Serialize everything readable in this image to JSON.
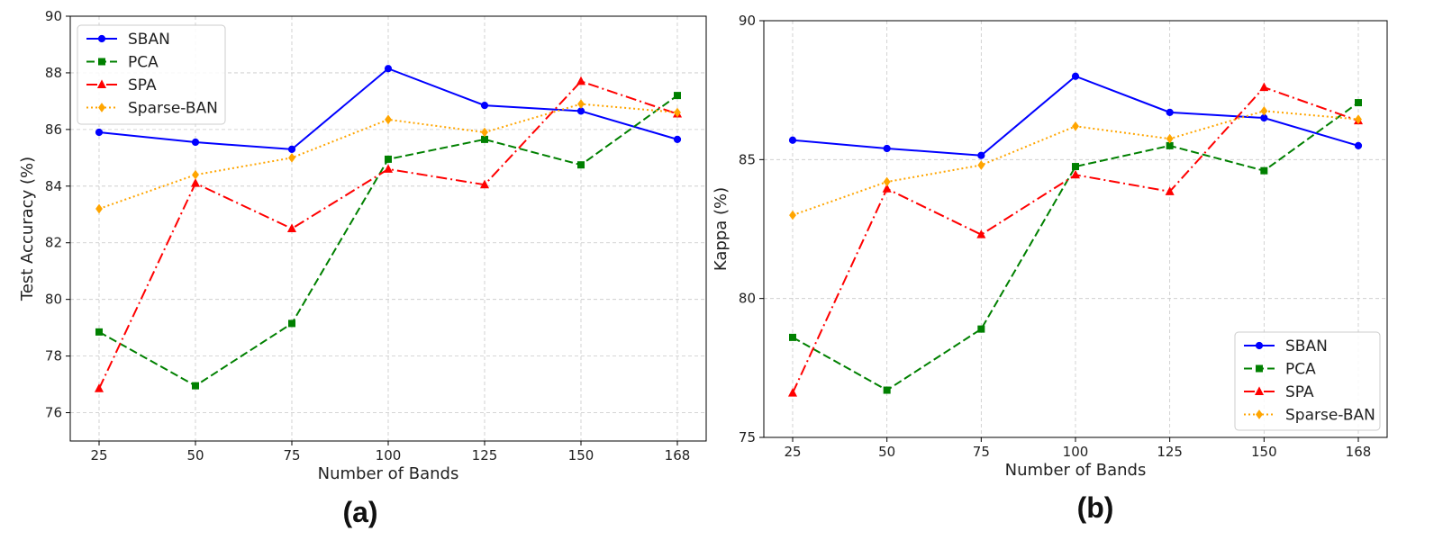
{
  "chart_data": [
    {
      "type": "line",
      "panel_label": "(a)",
      "xlabel": "Number of Bands",
      "ylabel": "Test Accuracy (%)",
      "x": [
        25,
        50,
        75,
        100,
        125,
        150,
        168
      ],
      "x_tick_labels": [
        "25",
        "50",
        "75",
        "100",
        "125",
        "150",
        "168"
      ],
      "ylim": [
        75,
        90
      ],
      "y_ticks": [
        76,
        78,
        80,
        82,
        84,
        86,
        88,
        90
      ],
      "y_tick_labels": [
        "76",
        "78",
        "80",
        "82",
        "84",
        "86",
        "88",
        "90"
      ],
      "grid": true,
      "legend_position": "top-left",
      "series": [
        {
          "name": "SBAN",
          "color": "#0000ff",
          "style": "solid",
          "marker": "circle",
          "values": [
            85.9,
            85.55,
            85.3,
            88.15,
            86.85,
            86.65,
            85.65
          ]
        },
        {
          "name": "PCA",
          "color": "#008000",
          "style": "dashed",
          "marker": "square",
          "values": [
            78.85,
            76.95,
            79.15,
            84.95,
            85.65,
            84.75,
            87.2
          ]
        },
        {
          "name": "SPA",
          "color": "#ff0000",
          "style": "dashdot",
          "marker": "triangle",
          "values": [
            76.85,
            84.1,
            82.5,
            84.6,
            84.05,
            87.7,
            86.55
          ]
        },
        {
          "name": "Sparse-BAN",
          "color": "#ffa500",
          "style": "dotted",
          "marker": "diamond",
          "values": [
            83.2,
            84.4,
            85.0,
            86.35,
            85.9,
            86.9,
            86.6
          ]
        }
      ]
    },
    {
      "type": "line",
      "panel_label": "(b)",
      "xlabel": "Number of Bands",
      "ylabel": "Kappa (%)",
      "x": [
        25,
        50,
        75,
        100,
        125,
        150,
        168
      ],
      "x_tick_labels": [
        "25",
        "50",
        "75",
        "100",
        "125",
        "150",
        "168"
      ],
      "ylim": [
        75,
        90
      ],
      "y_ticks": [
        75,
        80,
        85,
        90
      ],
      "y_tick_labels": [
        "75",
        "80",
        "85",
        "90"
      ],
      "grid": true,
      "legend_position": "bottom-right",
      "series": [
        {
          "name": "SBAN",
          "color": "#0000ff",
          "style": "solid",
          "marker": "circle",
          "values": [
            85.7,
            85.4,
            85.15,
            88.0,
            86.7,
            86.5,
            85.5
          ]
        },
        {
          "name": "PCA",
          "color": "#008000",
          "style": "dashed",
          "marker": "square",
          "values": [
            78.6,
            76.7,
            78.9,
            84.75,
            85.5,
            84.6,
            87.05
          ]
        },
        {
          "name": "SPA",
          "color": "#ff0000",
          "style": "dashdot",
          "marker": "triangle",
          "values": [
            76.6,
            83.95,
            82.3,
            84.45,
            83.85,
            87.6,
            86.4
          ]
        },
        {
          "name": "Sparse-BAN",
          "color": "#ffa500",
          "style": "dotted",
          "marker": "diamond",
          "values": [
            83.0,
            84.2,
            84.8,
            86.2,
            85.75,
            86.75,
            86.45
          ]
        }
      ]
    }
  ]
}
